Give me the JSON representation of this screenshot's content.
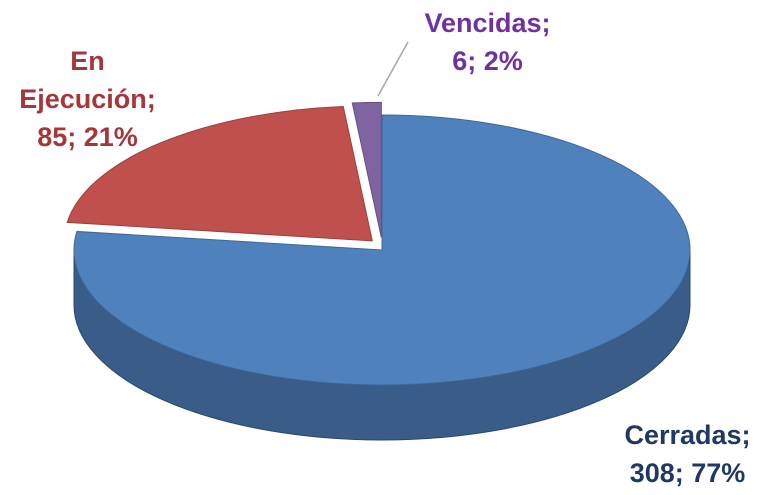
{
  "chart_data": {
    "type": "pie",
    "categories": [
      "Cerradas;",
      "En Ejecución;",
      "Vencidas;"
    ],
    "values": [
      308,
      85,
      6
    ],
    "value_labels": [
      "308; 77%",
      "85; 21%",
      "6; 2%"
    ],
    "colors": [
      "#4f81bd",
      "#c0504d",
      "#8064a2"
    ],
    "label_colors": [
      "#1f3864",
      "#a5373a",
      "#7030a0"
    ]
  }
}
